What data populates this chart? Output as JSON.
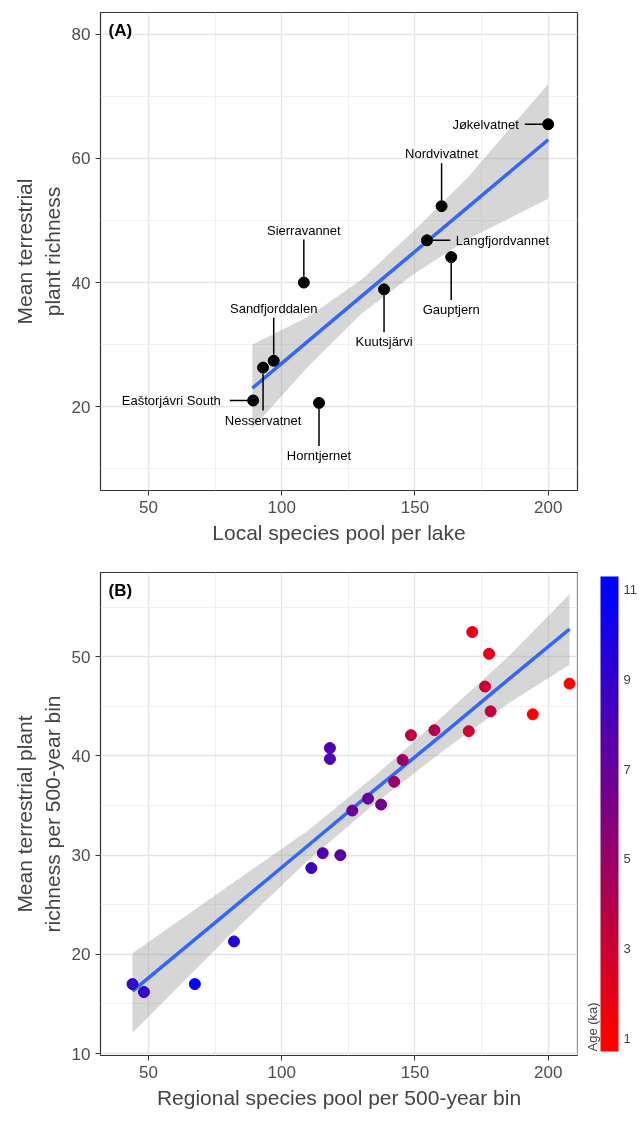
{
  "chart_data": [
    {
      "type": "scatter",
      "title": "(A)",
      "xlabel": "Local species pool per lake",
      "ylabel": "Mean terrestrial\nplant richness",
      "xlim": [
        32,
        211
      ],
      "ylim": [
        6.5,
        83.5
      ],
      "xticks": [
        50,
        100,
        150,
        200
      ],
      "yticks": [
        20,
        40,
        60,
        80
      ],
      "grid": true,
      "series": [
        {
          "marker": "circle",
          "color": "#000000",
          "x": [
            200,
            160,
            154.5,
            163.6,
            108.3,
            138.4,
            97,
            93,
            89.3,
            114
          ],
          "values": [
            65.5,
            52.3,
            46.8,
            44.1,
            40,
            38.9,
            27.4,
            26.3,
            21,
            20.6
          ],
          "value_labels": [
            "Jøkelvatnet",
            "Nordvivatnet",
            "Langfjordvannet",
            "Gauptjern",
            "Sierravannet",
            "Kuutsjärvi",
            "Sandfjorddalen",
            "Nesservatnet",
            "Eaštorjávri South",
            "Horntjernet"
          ]
        },
        {
          "type": "line",
          "color": "#3366ff",
          "x": [
            89,
            110,
            130,
            150,
            170,
            200
          ],
          "values": [
            23,
            30.6,
            37.8,
            45,
            52.2,
            63
          ],
          "lower": [
            16.5,
            26.5,
            35,
            41.5,
            47,
            53.5
          ],
          "upper": [
            30,
            34.5,
            40.5,
            48.5,
            57,
            72
          ]
        }
      ]
    },
    {
      "type": "scatter",
      "title": "(B)",
      "xlabel": "Regional species pool per 500-year bin",
      "ylabel": "Mean terrestrial plant\nrichness per 500-year bin",
      "clabel": "Age (ka)",
      "clim": [
        0.7,
        11.3
      ],
      "cticks": [
        1,
        3,
        5,
        7,
        9,
        11
      ],
      "xlim": [
        32,
        211
      ],
      "ylim": [
        9.8,
        58.5
      ],
      "xticks": [
        50,
        100,
        150,
        200
      ],
      "yticks": [
        10,
        20,
        30,
        40,
        50
      ],
      "grid": true,
      "series": [
        {
          "marker": "circle",
          "x": [
            171.5,
            177.8,
            176.3,
            208,
            178.4,
            194.2,
            170.2,
            157.3,
            148.5,
            118.1,
            118.1,
            145.4,
            142.2,
            132.4,
            137.3,
            126.5,
            115.4,
            122,
            111.1,
            82.1,
            44,
            48.3,
            67.4
          ],
          "values": [
            52.5,
            50.3,
            47,
            47.3,
            44.5,
            44.2,
            42.5,
            42.6,
            42.1,
            40.8,
            39.7,
            39.6,
            37.4,
            35.7,
            35.1,
            34.5,
            30.2,
            30,
            28.7,
            21.3,
            17,
            16.2,
            17
          ],
          "cvalues": [
            2,
            2,
            3,
            1,
            3.5,
            1,
            3,
            4,
            3.5,
            8,
            8,
            5,
            5,
            7,
            6.5,
            7,
            8,
            7.5,
            8.5,
            9.5,
            9,
            9,
            11
          ],
          "colors": [
            "#e6001a",
            "#e6001a",
            "#cc0033",
            "#ff0000",
            "#bf0040",
            "#ff0000",
            "#cc0033",
            "#b2004d",
            "#bf0040",
            "#4d00b2",
            "#4d00b2",
            "#990066",
            "#990066",
            "#660099",
            "#73008c",
            "#660099",
            "#4d00b2",
            "#5900a6",
            "#4000bf",
            "#2600d9",
            "#3300cc",
            "#3300cc",
            "#0000ff"
          ]
        },
        {
          "type": "line",
          "color": "#3366ff",
          "x": [
            44,
            80,
            110,
            135,
            160,
            185,
            208
          ],
          "values": [
            16.3,
            24.3,
            31.0,
            36.6,
            42.1,
            47.7,
            52.8
          ],
          "lower": [
            12.1,
            21.8,
            29.5,
            35.2,
            40.4,
            45.3,
            49.2
          ],
          "upper": [
            20.1,
            26.9,
            32.5,
            38.0,
            43.9,
            50.0,
            56.3
          ]
        }
      ]
    }
  ]
}
